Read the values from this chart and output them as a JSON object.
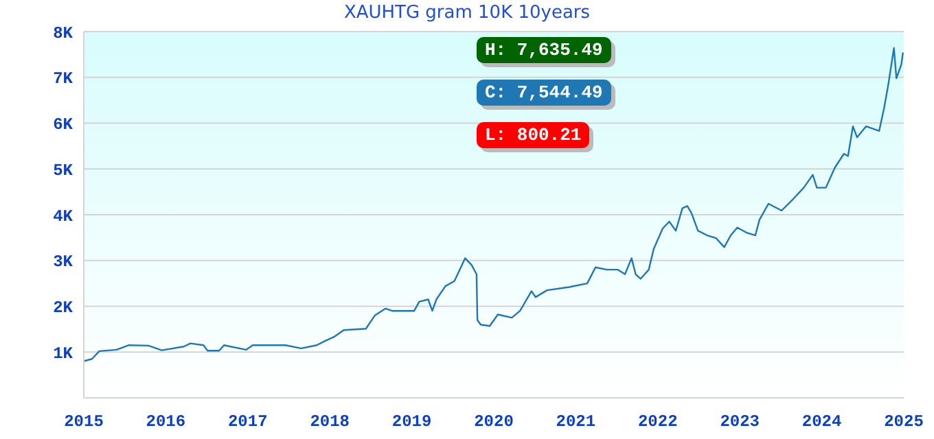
{
  "chart_data": {
    "type": "line",
    "title": "XAUHTG gram 10K 10years",
    "x": [
      2015.0,
      2015.1,
      2015.19,
      2015.4,
      2015.55,
      2015.79,
      2015.95,
      2016.22,
      2016.3,
      2016.46,
      2016.51,
      2016.65,
      2016.71,
      2016.98,
      2017.06,
      2017.46,
      2017.65,
      2017.84,
      2017.95,
      2018.06,
      2018.17,
      2018.44,
      2018.55,
      2018.68,
      2018.76,
      2019.03,
      2019.09,
      2019.2,
      2019.25,
      2019.3,
      2019.41,
      2019.52,
      2019.65,
      2019.73,
      2019.79,
      2019.8,
      2019.84,
      2019.95,
      2020.05,
      2020.22,
      2020.32,
      2020.46,
      2020.51,
      2020.65,
      2020.92,
      2021.14,
      2021.24,
      2021.38,
      2021.51,
      2021.6,
      2021.68,
      2021.73,
      2021.79,
      2021.89,
      2021.95,
      2022.06,
      2022.14,
      2022.22,
      2022.3,
      2022.36,
      2022.41,
      2022.49,
      2022.6,
      2022.71,
      2022.81,
      2022.89,
      2022.97,
      2023.08,
      2023.19,
      2023.24,
      2023.35,
      2023.51,
      2023.65,
      2023.78,
      2023.89,
      2023.94,
      2024.05,
      2024.16,
      2024.27,
      2024.32,
      2024.38,
      2024.43,
      2024.54,
      2024.7,
      2024.76,
      2024.81,
      2024.88,
      2024.91,
      2024.97,
      2024.99
    ],
    "series": [
      {
        "color": "#1f77b4",
        "values": [
          800,
          850,
          1020,
          1050,
          1150,
          1140,
          1040,
          1120,
          1190,
          1150,
          1030,
          1030,
          1150,
          1050,
          1150,
          1150,
          1080,
          1150,
          1250,
          1340,
          1480,
          1510,
          1800,
          1950,
          1900,
          1900,
          2100,
          2150,
          1900,
          2150,
          2440,
          2550,
          3050,
          2900,
          2700,
          1700,
          1600,
          1570,
          1820,
          1750,
          1900,
          2330,
          2200,
          2350,
          2420,
          2500,
          2850,
          2800,
          2800,
          2700,
          3050,
          2700,
          2600,
          2800,
          3250,
          3700,
          3850,
          3650,
          4140,
          4190,
          4040,
          3650,
          3550,
          3490,
          3290,
          3550,
          3720,
          3610,
          3550,
          3890,
          4240,
          4090,
          4340,
          4590,
          4870,
          4590,
          4590,
          5030,
          5330,
          5280,
          5930,
          5690,
          5930,
          5830,
          6330,
          6830,
          7640,
          6980,
          7280,
          7540
        ]
      }
    ],
    "xlim": [
      2015,
      2025
    ],
    "xticks": [
      2015,
      2016,
      2017,
      2018,
      2019,
      2020,
      2021,
      2022,
      2023,
      2024,
      2025
    ],
    "ylim": [
      0,
      8000
    ],
    "yticks": [
      {
        "value": 1000,
        "label": "1K"
      },
      {
        "value": 2000,
        "label": "2K"
      },
      {
        "value": 3000,
        "label": "3K"
      },
      {
        "value": 4000,
        "label": "4K"
      },
      {
        "value": 5000,
        "label": "5K"
      },
      {
        "value": 6000,
        "label": "6K"
      },
      {
        "value": 7000,
        "label": "7K"
      },
      {
        "value": 8000,
        "label": "8K"
      }
    ],
    "grid": "y",
    "marker": "none",
    "line_style": "solid",
    "annotations": [
      "H: 7,635.49",
      "C: 7,544.49",
      "L: 800.21"
    ]
  }
}
